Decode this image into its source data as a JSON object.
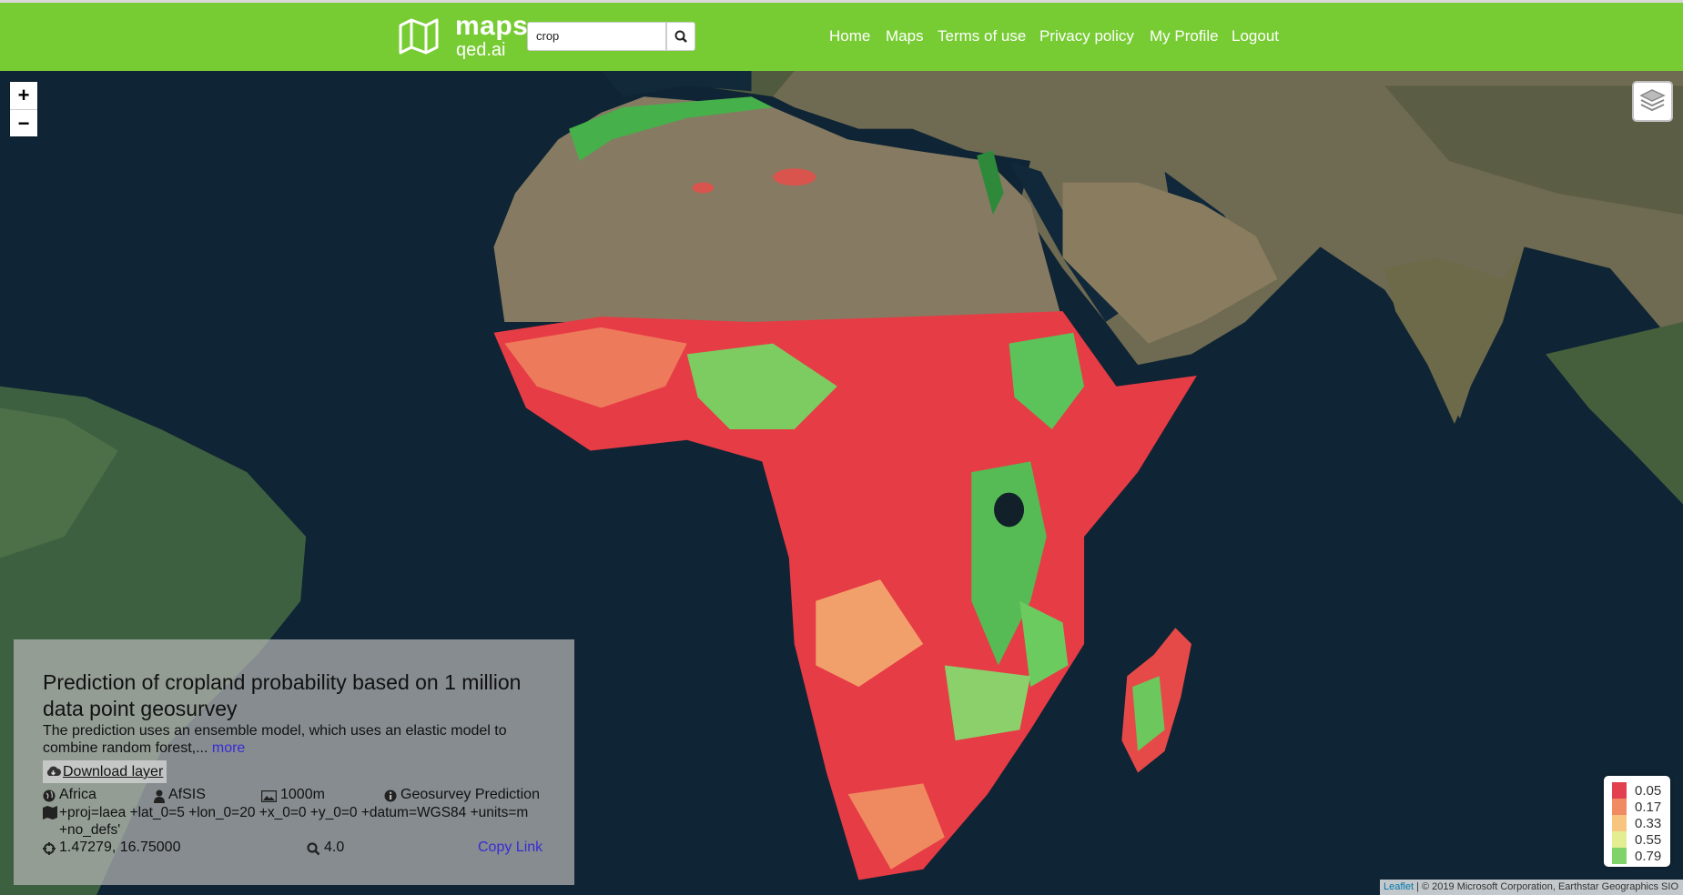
{
  "header": {
    "logo": {
      "name": "maps",
      "sub": "qed.ai"
    },
    "search": {
      "value": "crop"
    },
    "nav": [
      "Home",
      "Maps",
      "Terms of use",
      "Privacy policy",
      "My Profile",
      "Logout"
    ]
  },
  "map_controls": {
    "zoom_in": "+",
    "zoom_out": "−"
  },
  "info_panel": {
    "title": "Prediction of cropland probability based on 1 million data point geosurvey",
    "description": "The prediction uses an ensemble model, which uses an elastic model to combine random forest,... ",
    "more": "more",
    "download": "Download layer",
    "region": "Africa",
    "source": "AfSIS",
    "resolution": "1000m",
    "type": "Geosurvey Prediction",
    "projection": "+proj=laea +lat_0=5 +lon_0=20 +x_0=0 +y_0=0 +datum=WGS84 +units=m +no_defs'",
    "coordinates": "1.47279, 16.75000",
    "zoom": "4.0",
    "copy_link": "Copy Link"
  },
  "legend": [
    {
      "color": "#e2404e",
      "value": 0.05
    },
    {
      "color": "#f08a62",
      "value": 0.17
    },
    {
      "color": "#f7c57f",
      "value": 0.33
    },
    {
      "color": "#e3ee92",
      "value": 0.55
    },
    {
      "color": "#7fd36a",
      "value": 0.79
    }
  ],
  "attribution": {
    "link": "Leaflet",
    "text": " | © 2019 Microsoft Corporation, Earthstar Geographics SIO"
  }
}
